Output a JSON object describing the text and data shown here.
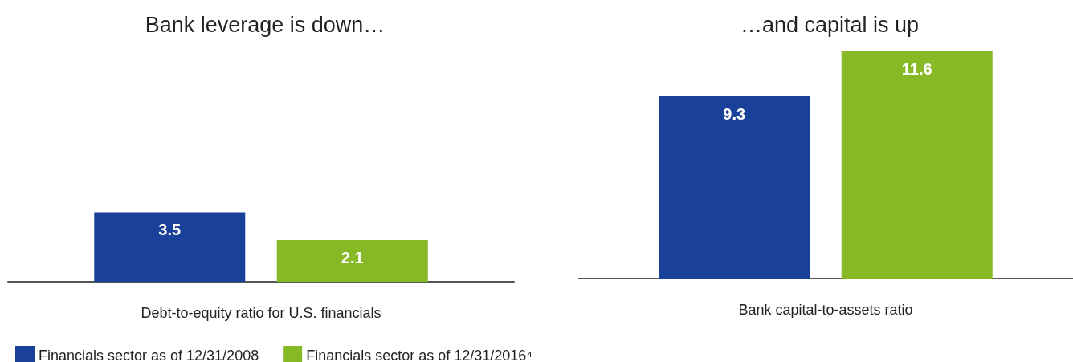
{
  "chart_data": [
    {
      "type": "bar",
      "title": "Bank leverage is down…",
      "xlabel": "Debt-to-equity ratio for U.S. financials",
      "categories": [
        null
      ],
      "data_labels": true,
      "grid": false,
      "legend": "bottom left",
      "series": [
        {
          "name": "Financials sector as of 12/31/2008",
          "color": "#1a4199",
          "values": [
            3.5
          ]
        },
        {
          "name": "Financials sector as of 12/31/2016⁴",
          "color": "#86b925",
          "values": [
            2.1
          ]
        }
      ]
    },
    {
      "type": "bar",
      "title": "…and capital is up",
      "xlabel": "Bank capital-to-assets ratio",
      "categories": [
        null
      ],
      "data_labels": true,
      "grid": false,
      "series": [
        {
          "color": "#1a4199",
          "values": [
            9.3
          ]
        },
        {
          "color": "#86b925",
          "values": [
            11.6
          ]
        }
      ]
    }
  ]
}
